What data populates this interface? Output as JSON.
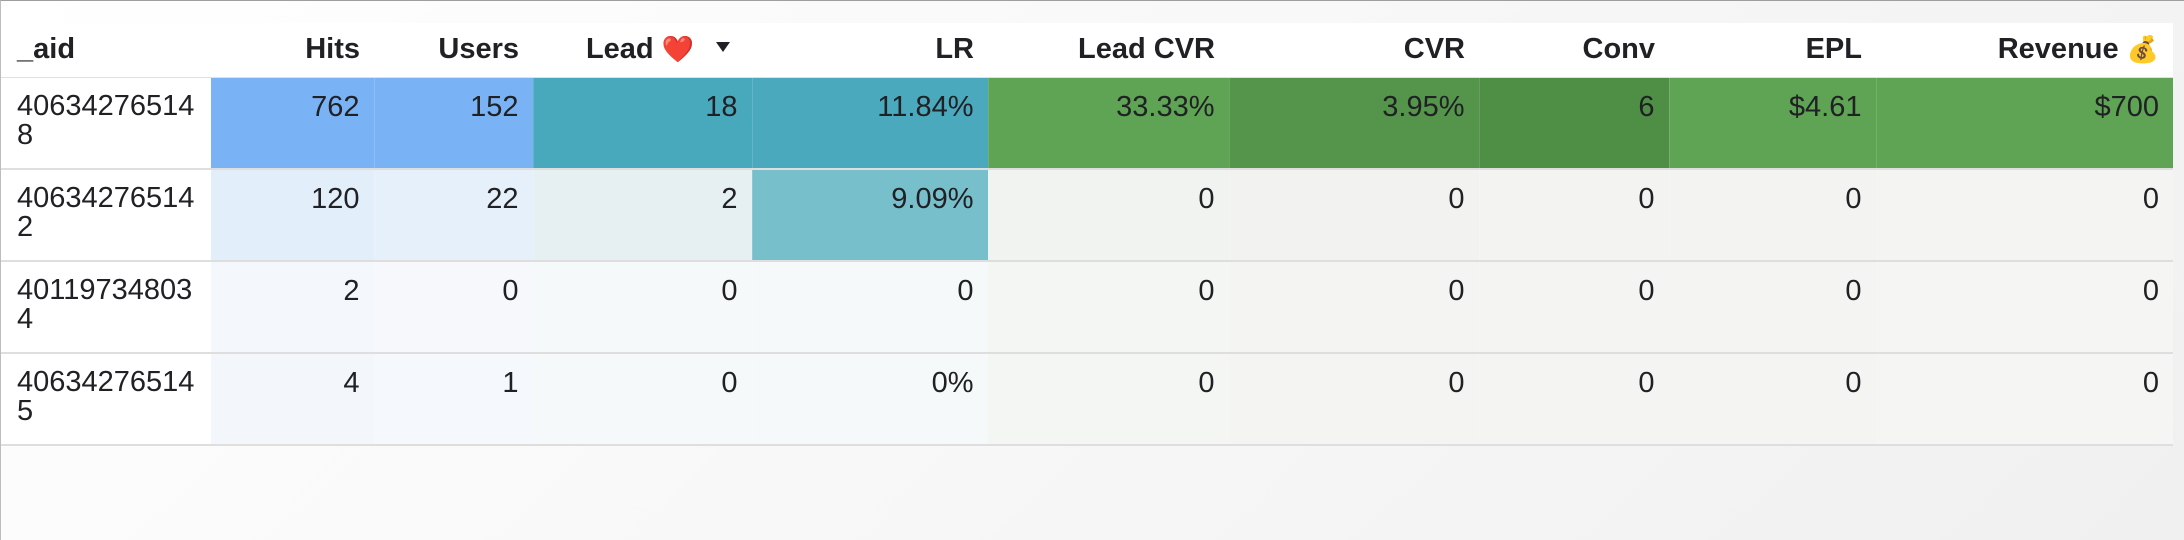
{
  "table": {
    "columns": [
      {
        "key": "aid",
        "label": "_aid",
        "emoji": ""
      },
      {
        "key": "hits",
        "label": "Hits",
        "emoji": ""
      },
      {
        "key": "users",
        "label": "Users",
        "emoji": ""
      },
      {
        "key": "lead",
        "label": "Lead",
        "emoji": "❤️",
        "sorted": "desc"
      },
      {
        "key": "lr",
        "label": "LR",
        "emoji": ""
      },
      {
        "key": "lead_cvr",
        "label": "Lead CVR",
        "emoji": ""
      },
      {
        "key": "cvr",
        "label": "CVR",
        "emoji": ""
      },
      {
        "key": "conv",
        "label": "Conv",
        "emoji": ""
      },
      {
        "key": "epl",
        "label": "EPL",
        "emoji": ""
      },
      {
        "key": "revenue",
        "label": "Revenue",
        "emoji": "💰"
      }
    ],
    "rows": [
      {
        "aid": "406342765148",
        "cells": [
          "762",
          "152",
          "18",
          "11.84%",
          "33.33%",
          "3.95%",
          "6",
          "$4.61",
          "$700"
        ],
        "colors": [
          "#7ab3f5",
          "#7ab3f5",
          "#48a9bd",
          "#4ba9be",
          "#5fa354",
          "#55954b",
          "#4e8e45",
          "#5fa354",
          "#5fa354"
        ]
      },
      {
        "aid": "406342765142",
        "cells": [
          "120",
          "22",
          "2",
          "9.09%",
          "0",
          "0",
          "0",
          "0",
          "0"
        ],
        "colors": [
          "#e3eefb",
          "#e6f0fa",
          "#e6f0f3",
          "#78bfcc",
          "#f1f3f0",
          "#f2f3f1",
          "#f3f4f2",
          "#f3f4f2",
          "#f4f4f3"
        ]
      },
      {
        "aid": "401197348034",
        "cells": [
          "2",
          "0",
          "0",
          "0",
          "0",
          "0",
          "0",
          "0",
          "0"
        ],
        "colors": [
          "#f4f7fc",
          "#f6f8fc",
          "#f6f9fa",
          "#f6f9fa",
          "#f4f6f3",
          "#f4f5f3",
          "#f4f5f3",
          "#f4f5f3",
          "#f5f5f4"
        ]
      },
      {
        "aid": "406342765145",
        "cells": [
          "4",
          "1",
          "0",
          "0%",
          "0",
          "0",
          "0",
          "0",
          "0"
        ],
        "colors": [
          "#f3f6fb",
          "#f5f8fc",
          "#f6f9fa",
          "#f6f9fa",
          "#f4f6f3",
          "#f4f5f3",
          "#f4f5f3",
          "#f4f5f3",
          "#f5f5f4"
        ]
      }
    ]
  }
}
